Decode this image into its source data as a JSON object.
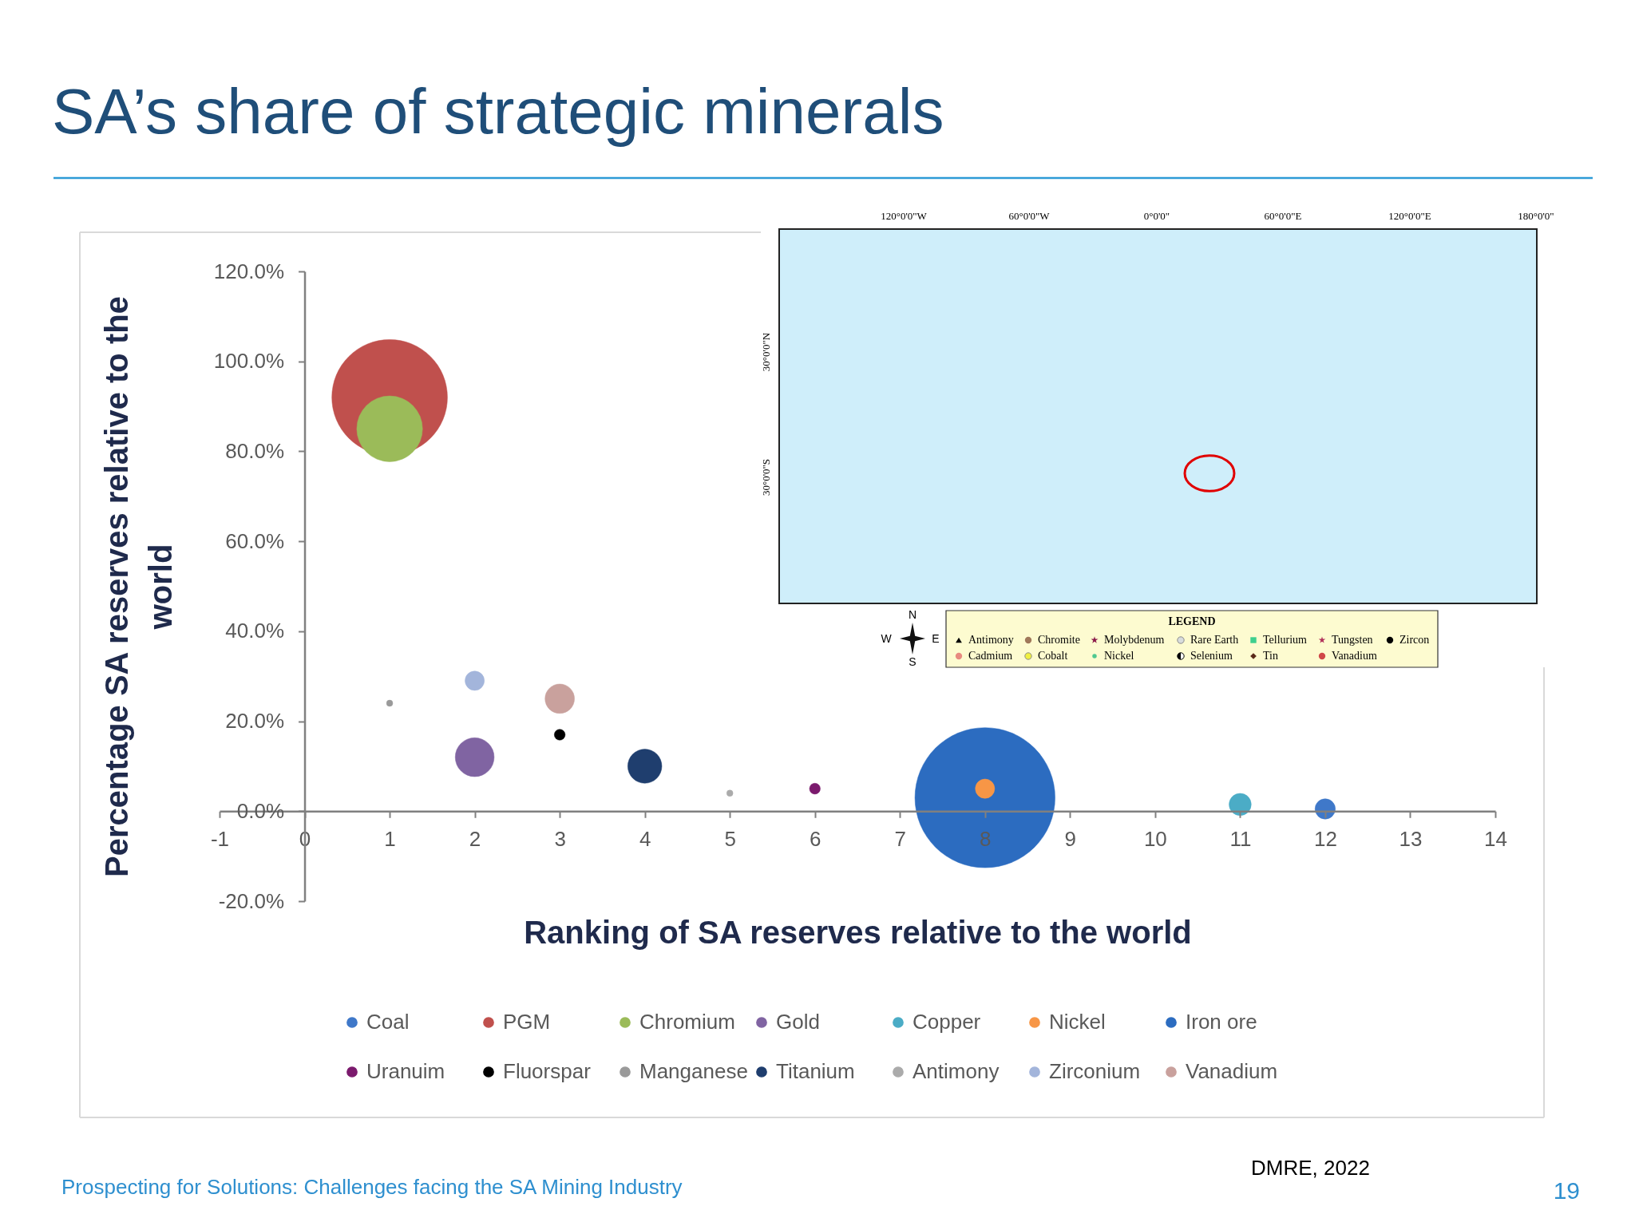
{
  "chart_data": [
    {
      "type": "bubble",
      "title": "SA’s share of strategic minerals",
      "xlabel": "Ranking of SA reserves relative to the world",
      "ylabel": "Percentage SA reserves relative to the world",
      "xlim": [
        -1,
        14
      ],
      "xticks": [
        -1,
        0,
        1,
        2,
        3,
        4,
        5,
        6,
        7,
        8,
        9,
        10,
        11,
        12,
        13,
        14
      ],
      "ylim": [
        -20,
        120
      ],
      "yticks": [
        {
          "value": -20,
          "label": "-20.0%"
        },
        {
          "value": 0,
          "label": "0.0%"
        },
        {
          "value": 20,
          "label": "20.0%"
        },
        {
          "value": 40,
          "label": "40.0%"
        },
        {
          "value": 60,
          "label": "60.0%"
        },
        {
          "value": 80,
          "label": "80.0%"
        },
        {
          "value": 100,
          "label": "100.0%"
        },
        {
          "value": 120,
          "label": "120.0%"
        }
      ],
      "grid": false,
      "legend": "bottom",
      "series": [
        {
          "name": "Coal",
          "color": "#3f78c9",
          "x": [
            12
          ],
          "values": [
            0.5
          ],
          "sizes": [
            0.021
          ]
        },
        {
          "name": "PGM",
          "color": "#c0504d",
          "x": [
            1
          ],
          "values": [
            92
          ],
          "sizes": [
            0.68
          ]
        },
        {
          "name": "Chromium",
          "color": "#9bbb59",
          "x": [
            1
          ],
          "values": [
            85
          ],
          "sizes": [
            0.22
          ]
        },
        {
          "name": "Gold",
          "color": "#8064a2",
          "x": [
            2
          ],
          "values": [
            12
          ],
          "sizes": [
            0.077
          ]
        },
        {
          "name": "Copper",
          "color": "#4bacc6",
          "x": [
            11
          ],
          "values": [
            1.5
          ],
          "sizes": [
            0.025
          ]
        },
        {
          "name": "Nickel",
          "color": "#f79646",
          "x": [
            8
          ],
          "values": [
            5
          ],
          "sizes": [
            0.019
          ]
        },
        {
          "name": "Iron ore",
          "color": "#2c6cc0",
          "x": [
            8
          ],
          "values": [
            3
          ],
          "sizes": [
            1
          ]
        },
        {
          "name": "Uranuim",
          "color": "#7b1a6d",
          "x": [
            6
          ],
          "values": [
            5
          ],
          "sizes": [
            0.006
          ]
        },
        {
          "name": "Fluorspar",
          "color": "#000000",
          "x": [
            3
          ],
          "values": [
            17
          ],
          "sizes": [
            0.006
          ]
        },
        {
          "name": "Manganese",
          "color": "#9a9a9a",
          "x": [
            1
          ],
          "values": [
            24
          ],
          "sizes": [
            0.002
          ]
        },
        {
          "name": "Titanium",
          "color": "#1f3e6e",
          "x": [
            4
          ],
          "values": [
            10
          ],
          "sizes": [
            0.059
          ]
        },
        {
          "name": "Antimony",
          "color": "#ababab",
          "x": [
            5
          ],
          "values": [
            4
          ],
          "sizes": [
            0.002
          ]
        },
        {
          "name": "Zirconium",
          "color": "#a3b5db",
          "x": [
            2
          ],
          "values": [
            29
          ],
          "sizes": [
            0.019
          ]
        },
        {
          "name": "Vanadium",
          "color": "#c9a19d",
          "x": [
            3
          ],
          "values": [
            25
          ],
          "sizes": [
            0.044
          ]
        }
      ],
      "annotations": [
        "Prospecting for Solutions: Challenges facing the SA Mining Industry",
        "DMRE, 2022",
        "19"
      ]
    },
    {
      "type": "other",
      "legend_title": "LEGEND",
      "annotations": [
        "120°0'0\"W",
        "60°0'0\"W",
        "0°0'0\"",
        "60°0'0\"E",
        "120°0'0\"E",
        "180°0'0\"",
        "30°0'0\"N",
        "30°0'0\"S",
        "N",
        "W",
        "E",
        "S",
        "Antimony",
        "Chromite",
        "Molybdenum",
        "Rare Earth",
        "Tellurium",
        "Tungsten",
        "Zircon",
        "Cadmium",
        "Cobalt",
        "Nickel",
        "Selenium",
        "Tin",
        "Vanadium"
      ]
    }
  ]
}
